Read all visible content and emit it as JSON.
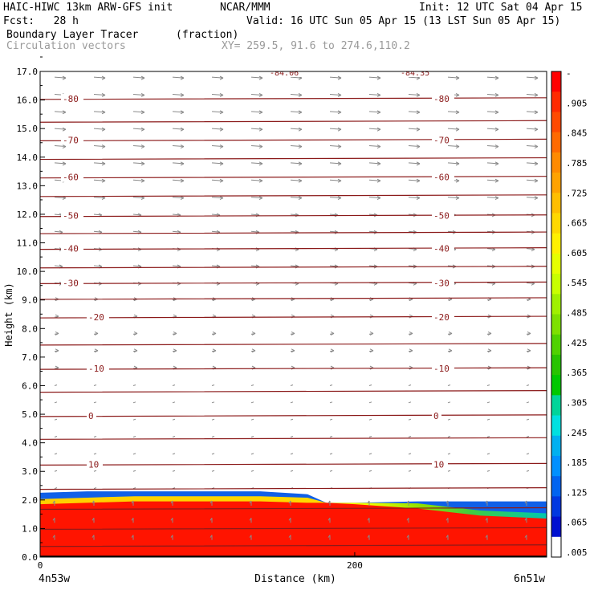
{
  "header": {
    "model": "HAIC-HIWC 13km ARW-GFS init",
    "org": "NCAR/MMM",
    "init": "Init: 12 UTC Sat 04 Apr 15",
    "fcst": "Fcst:   28 h",
    "valid": "Valid: 16 UTC Sun 05 Apr 15 (13 LST Sun 05 Apr 15)",
    "field": "Boundary Layer Tracer",
    "units": "(fraction)",
    "vectors": "Circulation vectors",
    "xy": "XY= 259.5, 91.6 to 274.6,110.2"
  },
  "chart_data": {
    "type": "heatmap",
    "xlabel": "Distance (km)",
    "ylabel": "Height (km)",
    "xlim": [
      0,
      322
    ],
    "ylim": [
      0,
      17
    ],
    "x_ticks": [
      "0",
      "200"
    ],
    "y_ticks": [
      "0.0",
      "1.0",
      "2.0",
      "3.0",
      "4.0",
      "5.0",
      "6.0",
      "7.0",
      "8.0",
      "9.0",
      "10.0",
      "11.0",
      "12.0",
      "13.0",
      "14.0",
      "15.0",
      "16.0",
      "17.0"
    ],
    "left_endpoint": "4n53w",
    "right_endpoint": "6n51w",
    "colorbar_labels": [
      "-",
      ".905",
      ".845",
      ".785",
      ".725",
      ".665",
      ".605",
      ".545",
      ".485",
      ".425",
      ".365",
      ".305",
      ".245",
      ".185",
      ".125",
      ".065",
      ".005"
    ],
    "colorbar_colors": [
      "#ff0000",
      "#ff2a00",
      "#ff4a00",
      "#ff6a00",
      "#ff8a00",
      "#ffa200",
      "#ffbe00",
      "#ffd800",
      "#fff000",
      "#e6ff00",
      "#c8ff00",
      "#a0f000",
      "#7ee000",
      "#50d200",
      "#28c400",
      "#00c800",
      "#00d49a",
      "#00e0e0",
      "#00b0f0",
      "#0090ff",
      "#0064f0",
      "#0038e0",
      "#0010d0",
      "#ffffff"
    ],
    "temperature_contours": [
      {
        "label": "-80",
        "height": 16.05
      },
      {
        "label": "-70",
        "height": 14.6
      },
      {
        "label": "-60",
        "height": 13.3
      },
      {
        "label": "-50",
        "height": 11.95
      },
      {
        "label": "-40",
        "height": 10.8
      },
      {
        "label": "-30",
        "height": 9.6
      },
      {
        "label": "-20",
        "height": 8.4
      },
      {
        "label": "-10",
        "height": 6.6
      },
      {
        "label": "0",
        "height": 4.95
      },
      {
        "label": "10",
        "height": 3.25
      }
    ],
    "extra_contour_heights": [
      15.25,
      13.95,
      12.65,
      11.35,
      10.15,
      9.05,
      7.45,
      5.8,
      4.15,
      2.4,
      1.7,
      1.0,
      0.4
    ],
    "top_labels": [
      "-84.06",
      "-84.35"
    ],
    "tracer_profile": {
      "distance_km": [
        0,
        30,
        60,
        100,
        140,
        170,
        182,
        200,
        240,
        280,
        322
      ],
      "top_of_high_tracer_km": [
        1.85,
        1.9,
        1.95,
        1.95,
        1.95,
        1.9,
        1.9,
        1.85,
        1.7,
        1.45,
        1.35
      ],
      "layer_top_km": [
        2.25,
        2.3,
        2.3,
        2.3,
        2.3,
        2.2,
        1.9,
        1.9,
        1.95,
        1.95,
        1.95
      ]
    }
  }
}
